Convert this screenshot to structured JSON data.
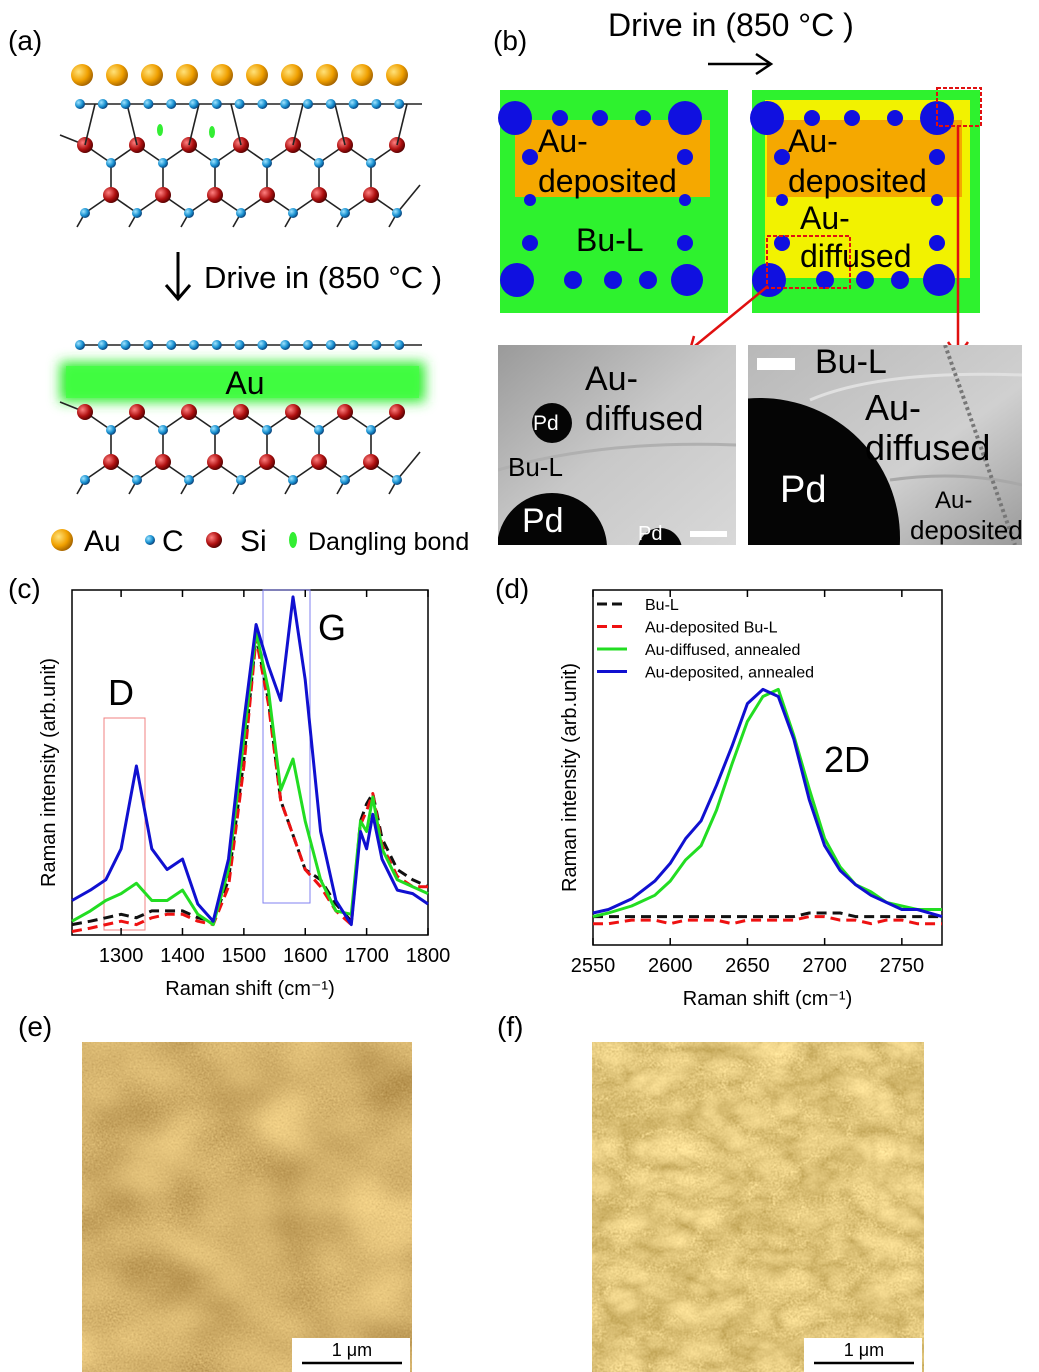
{
  "figure": {
    "panel_labels": [
      "(a)",
      "(b)",
      "(c)",
      "(d)",
      "(e)",
      "(f)"
    ],
    "a": {
      "arrow_label": "Drive in (850 °C )",
      "band_label": "Au",
      "legend": [
        "Au",
        "C",
        "Si",
        "Dangling bond"
      ]
    },
    "b": {
      "arrow_label": "Drive in (850 °C )",
      "left_square": {
        "top": [
          "Au-",
          "deposited"
        ],
        "bottom": "Bu-L"
      },
      "right_square": {
        "top": [
          "Au-",
          "deposited"
        ],
        "middle": [
          "Au-",
          "diffused"
        ]
      },
      "tem_left": {
        "region": [
          "Au-",
          "diffused"
        ],
        "layer": "Bu-L",
        "particles": [
          "Pd",
          "Pd",
          "Pd"
        ]
      },
      "tem_right": {
        "layer": "Bu-L",
        "region": [
          "Au-",
          "diffused"
        ],
        "particle": "Pd",
        "edge": [
          "Au-",
          "deposited"
        ]
      }
    },
    "e": {
      "scale_bar": "1 μm"
    },
    "f": {
      "scale_bar": "1 μm"
    }
  },
  "chart_data": [
    {
      "type": "line",
      "x": [
        1220,
        1250,
        1275,
        1300,
        1325,
        1350,
        1375,
        1400,
        1425,
        1450,
        1475,
        1500,
        1520,
        1540,
        1560,
        1580,
        1600,
        1625,
        1650,
        1675,
        1690,
        1700,
        1710,
        1725,
        1750,
        1775,
        1800
      ],
      "xlim": [
        1220,
        1800
      ],
      "xticks": [
        1300,
        1400,
        1500,
        1600,
        1700,
        1800
      ],
      "ylim": [
        0,
        1
      ],
      "xlabel": "Raman shift (cm⁻¹)",
      "ylabel": "Raman intensity (arb.unit)",
      "annotations": [
        "D",
        "G"
      ],
      "series": [
        {
          "color": "#111111",
          "dash": true,
          "values": [
            0.03,
            0.04,
            0.05,
            0.06,
            0.05,
            0.07,
            0.07,
            0.07,
            0.05,
            0.04,
            0.16,
            0.51,
            0.87,
            0.68,
            0.39,
            0.29,
            0.19,
            0.16,
            0.09,
            0.04,
            0.33,
            0.38,
            0.41,
            0.28,
            0.19,
            0.16,
            0.14
          ]
        },
        {
          "color": "#ee1111",
          "dash": true,
          "values": [
            0.01,
            0.02,
            0.03,
            0.04,
            0.03,
            0.05,
            0.06,
            0.06,
            0.04,
            0.03,
            0.14,
            0.49,
            0.86,
            0.67,
            0.39,
            0.29,
            0.19,
            0.14,
            0.07,
            0.03,
            0.32,
            0.36,
            0.41,
            0.26,
            0.17,
            0.14,
            0.14
          ]
        },
        {
          "color": "#22dd22",
          "values": [
            0.04,
            0.07,
            0.1,
            0.12,
            0.15,
            0.1,
            0.1,
            0.13,
            0.06,
            0.03,
            0.19,
            0.57,
            0.88,
            0.71,
            0.42,
            0.51,
            0.33,
            0.16,
            0.07,
            0.06,
            0.33,
            0.3,
            0.4,
            0.25,
            0.16,
            0.14,
            0.12
          ]
        },
        {
          "color": "#1010d0",
          "values": [
            0.1,
            0.13,
            0.16,
            0.25,
            0.49,
            0.25,
            0.19,
            0.22,
            0.09,
            0.04,
            0.22,
            0.62,
            0.9,
            0.78,
            0.68,
            0.98,
            0.74,
            0.3,
            0.1,
            0.03,
            0.3,
            0.25,
            0.35,
            0.22,
            0.13,
            0.12,
            0.09
          ]
        }
      ]
    },
    {
      "type": "line",
      "x": [
        2550,
        2560,
        2575,
        2590,
        2600,
        2610,
        2620,
        2630,
        2640,
        2650,
        2660,
        2670,
        2680,
        2690,
        2700,
        2710,
        2720,
        2730,
        2740,
        2750,
        2760,
        2776
      ],
      "xlim": [
        2550,
        2776
      ],
      "xticks": [
        2550,
        2600,
        2650,
        2700,
        2750
      ],
      "ylim": [
        0,
        1
      ],
      "xlabel": "Raman shift (cm⁻¹)",
      "ylabel": "Raman intensity (arb.unit)",
      "annotations": [
        "2D"
      ],
      "legend": "upper left",
      "series": [
        {
          "name": "Bu-L",
          "color": "#111111",
          "dash": true,
          "values": [
            0.08,
            0.08,
            0.08,
            0.08,
            0.08,
            0.08,
            0.08,
            0.08,
            0.08,
            0.08,
            0.08,
            0.08,
            0.08,
            0.09,
            0.09,
            0.09,
            0.08,
            0.08,
            0.08,
            0.08,
            0.08,
            0.08
          ]
        },
        {
          "name": "Au-deposited Bu-L",
          "color": "#ee1111",
          "dash": true,
          "values": [
            0.06,
            0.06,
            0.07,
            0.07,
            0.06,
            0.07,
            0.07,
            0.07,
            0.06,
            0.07,
            0.07,
            0.07,
            0.07,
            0.08,
            0.08,
            0.07,
            0.07,
            0.06,
            0.07,
            0.07,
            0.06,
            0.06
          ]
        },
        {
          "name": "Au-diffused, annealed",
          "color": "#22dd22",
          "values": [
            0.08,
            0.09,
            0.11,
            0.14,
            0.18,
            0.24,
            0.28,
            0.38,
            0.51,
            0.63,
            0.7,
            0.72,
            0.59,
            0.44,
            0.3,
            0.22,
            0.17,
            0.15,
            0.12,
            0.11,
            0.1,
            0.1
          ]
        },
        {
          "name": "Au-deposited, annealed",
          "color": "#1010d0",
          "values": [
            0.09,
            0.1,
            0.13,
            0.18,
            0.23,
            0.3,
            0.35,
            0.45,
            0.56,
            0.68,
            0.72,
            0.7,
            0.58,
            0.41,
            0.28,
            0.21,
            0.17,
            0.14,
            0.12,
            0.1,
            0.1,
            0.08
          ]
        }
      ]
    }
  ]
}
